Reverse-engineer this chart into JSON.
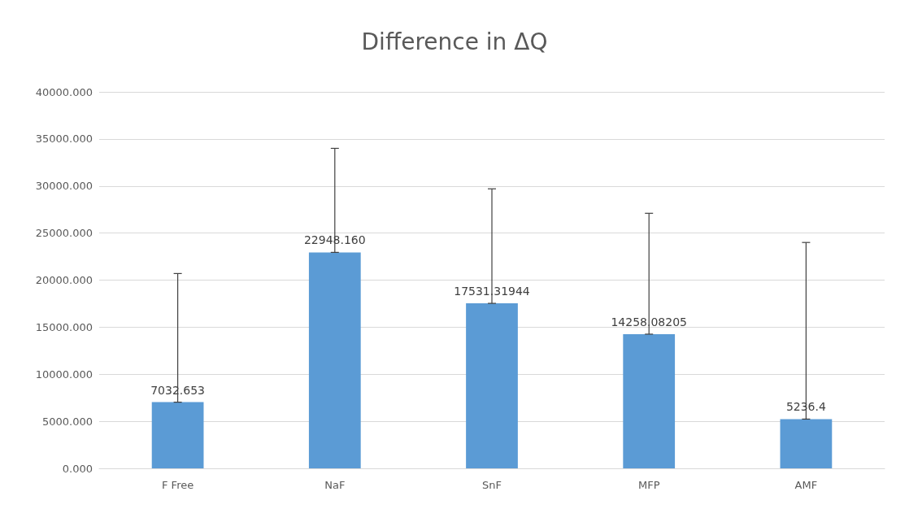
{
  "chart_data": {
    "type": "bar",
    "title": "Difference in ΔQ",
    "categories": [
      "F Free",
      "NaF",
      "SnF",
      "MFP",
      "AMF"
    ],
    "values": [
      7032.653,
      22948.16,
      17531.31944,
      14258.08205,
      5236.4
    ],
    "value_labels": [
      "7032.653",
      "22948.160",
      "17531.31944",
      "14258.08205",
      "5236.4"
    ],
    "errors": [
      [
        7032.653,
        20700
      ],
      [
        22948.16,
        34000
      ],
      [
        17531.31944,
        29700
      ],
      [
        14258.08205,
        27100
      ],
      [
        5236.4,
        24000
      ]
    ],
    "color": "#5b9bd5",
    "ylim": [
      0,
      40000
    ],
    "yticks": [
      {
        "value": 0,
        "label": "0.000"
      },
      {
        "value": 5000,
        "label": "5000.000"
      },
      {
        "value": 10000,
        "label": "10000.000"
      },
      {
        "value": 15000,
        "label": "15000.000"
      },
      {
        "value": 20000,
        "label": "20000.000"
      },
      {
        "value": 25000,
        "label": "25000.000"
      },
      {
        "value": 30000,
        "label": "30000.000"
      },
      {
        "value": 35000,
        "label": "35000.000"
      },
      {
        "value": 40000,
        "label": "40000.000"
      }
    ],
    "grid": "y"
  }
}
